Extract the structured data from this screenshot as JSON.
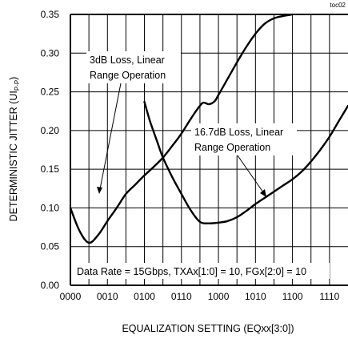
{
  "chart_data": {
    "type": "line",
    "corner_label": "toc02",
    "xlabel": "EQUALIZATION SETTING (EQxx[3:0])",
    "ylabel_main": "DETERMINISTIC JITTER (UI",
    "ylabel_sub": "P-P",
    "ylabel_close": ")",
    "x_ticks": [
      "0000",
      "0010",
      "0100",
      "0110",
      "1000",
      "1010",
      "1100",
      "1110"
    ],
    "y_ticks": [
      "0.00",
      "0.05",
      "0.10",
      "0.15",
      "0.20",
      "0.25",
      "0.30",
      "0.35"
    ],
    "xlim": [
      0,
      15
    ],
    "ylim": [
      0,
      0.35
    ],
    "grid": true,
    "series": [
      {
        "name": "3dB Loss, Linear Range Operation",
        "x": [
          0,
          0.5,
          1,
          1.5,
          2,
          2.5,
          3,
          3.5,
          4,
          4.5,
          5,
          5.5,
          6,
          6.5,
          7,
          7.2,
          7.5,
          7.8,
          8,
          8.5,
          9,
          9.5,
          10,
          10.5,
          11,
          11.5,
          12
        ],
        "y": [
          0.1,
          0.07,
          0.055,
          0.065,
          0.083,
          0.1,
          0.118,
          0.13,
          0.142,
          0.153,
          0.165,
          0.18,
          0.196,
          0.215,
          0.232,
          0.236,
          0.234,
          0.238,
          0.246,
          0.267,
          0.288,
          0.308,
          0.325,
          0.338,
          0.345,
          0.348,
          0.35
        ]
      },
      {
        "name": "16.7dB Loss, Linear Range Operation",
        "x": [
          4,
          4.3,
          4.7,
          5,
          5.5,
          6,
          6.5,
          7,
          7.5,
          8,
          8.5,
          9,
          9.5,
          10,
          10.5,
          11,
          11.5,
          12,
          12.5,
          13,
          13.5,
          14,
          14.5,
          15
        ],
        "y": [
          0.237,
          0.212,
          0.185,
          0.165,
          0.14,
          0.118,
          0.097,
          0.082,
          0.08,
          0.081,
          0.083,
          0.088,
          0.096,
          0.105,
          0.113,
          0.121,
          0.129,
          0.137,
          0.147,
          0.16,
          0.175,
          0.192,
          0.212,
          0.232
        ]
      }
    ],
    "annotations": {
      "loss3_line1": "3dB Loss, Linear",
      "loss3_line2": "Range Operation",
      "loss16_line1": "16.7dB Loss, Linear",
      "loss16_line2": "Range Operation",
      "conditions": "Data Rate = 15Gbps, TXAx[1:0] = 10, FGx[2:0] = 10"
    }
  }
}
